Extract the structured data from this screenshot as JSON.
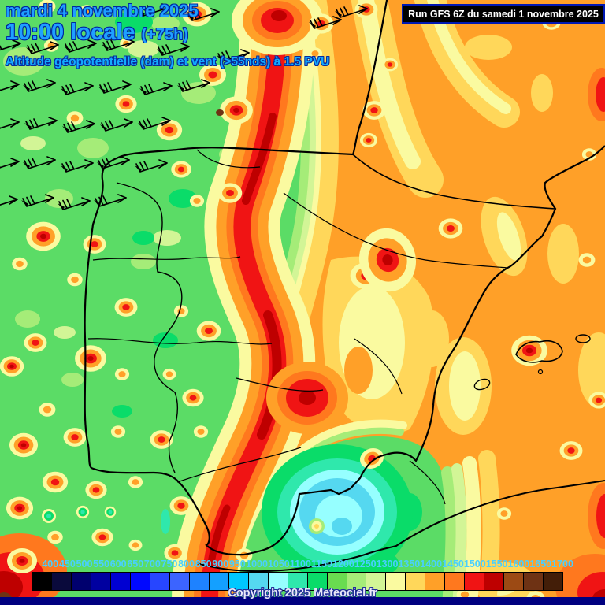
{
  "header": {
    "date_line": "mardi 4 novembre 2025",
    "time_line": "10:00 locale",
    "forecast_offset": "(+75h)",
    "param_line": "Altitude géopotentielle (dam) et vent (>55nds) à 1.5 PVU",
    "run_info": "Run GFS 6Z du samedi 1 novembre 2025"
  },
  "footer": {
    "copyright": "Copyright 2025 Meteociel.fr"
  },
  "legend": {
    "unit": "dam",
    "values": [
      "400",
      "450",
      "500",
      "550",
      "600",
      "650",
      "700",
      "750",
      "800",
      "850",
      "900",
      "950",
      "1000",
      "1050",
      "1100",
      "1150",
      "1200",
      "1250",
      "1300",
      "1350",
      "1400",
      "1450",
      "1500",
      "1550",
      "1600",
      "1650",
      "1700"
    ],
    "colors": [
      "#000000",
      "#0A0A3C",
      "#00006E",
      "#0000A0",
      "#0000D2",
      "#0008FF",
      "#2746FF",
      "#3C64FF",
      "#1E82FF",
      "#14A0FF",
      "#00C8FF",
      "#55D8F0",
      "#96FFFF",
      "#2FE8AC",
      "#0ADC69",
      "#69DC50",
      "#A5EC78",
      "#D2F596",
      "#FAFAA0",
      "#FFD75A",
      "#FFA028",
      "#FF781E",
      "#F01414",
      "#BE0000",
      "#9C4A14",
      "#6E3214",
      "#431E08"
    ],
    "label_color": "#49CFFF"
  },
  "map": {
    "icons": {
      "wind_barb": "wind-barb-icon"
    },
    "colors": {
      "base_green": "#5BDC66",
      "light_green": "#A5EC78",
      "spring_green": "#0ADC69",
      "pale_yellow": "#FAFAA0",
      "khaki": "#FFD75A",
      "orange": "#FFA028",
      "dark_orange": "#FF781E",
      "red": "#F01414",
      "dark_red": "#BE0000",
      "cutoff_low_cyan": "#55D8F0",
      "cutoff_low_pale": "#96FFFF",
      "coastline": "#000000",
      "title_blue": "#1FA0FF",
      "strip_navy": "#000080"
    }
  }
}
